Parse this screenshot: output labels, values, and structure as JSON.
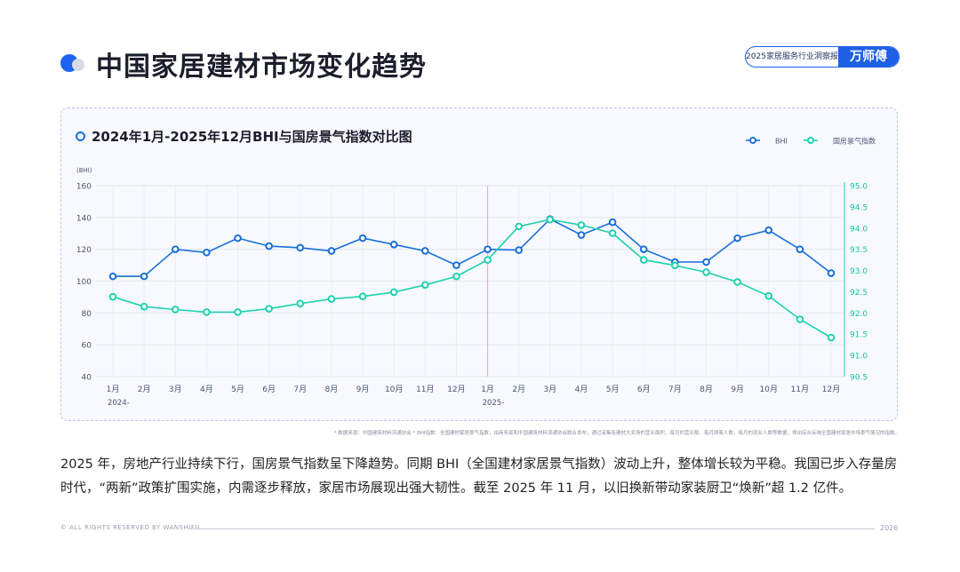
{
  "page": {
    "title": "中国家居建材市场变化趋势",
    "badge_text": "2025家居服务行业洞察报告",
    "brand": "万师傅",
    "paragraph": "2025 年，房地产行业持续下行，国房景气指数呈下降趋势。同期 BHI（全国建材家居景气指数）波动上升，整体增长较为平稳。我国已步入存量房时代，“两新”政策扩围实施，内需逐步释放，家居市场展现出强大韧性。截至 2025 年 11 月，以旧换新带动家装厨卫“焕新”超 1.2 亿件。",
    "source_note": "* 数据来源：中国建筑材料流通协会 * BHI指数：全国建材家居景气指数，由商务部和中国建筑材料流通协会联合发布，通过采集各建材大卖场的营业面积、每月的营业额、每月顾客人数、每月的就业人数等数据，得出综合反映全国建材家居市场景气情况的指数。",
    "footer_left": "© ALL RIGHTS RESERVED BY WANSHIFU",
    "footer_year": "2026"
  },
  "colors": {
    "accent": "#1d63f0",
    "bhi": "#1a6fd6",
    "index": "#1fd1b0"
  },
  "chart_data": {
    "type": "line",
    "title": "2024年1月-2025年12月BHI与国房景气指数对比图",
    "ylabel_left": "(BHI)",
    "categories": [
      "1月",
      "2月",
      "3月",
      "4月",
      "5月",
      "6月",
      "7月",
      "8月",
      "9月",
      "10月",
      "11月",
      "12月",
      "1月",
      "2月",
      "3月",
      "4月",
      "5月",
      "6月",
      "7月",
      "8月",
      "9月",
      "10月",
      "11月",
      "12月"
    ],
    "year_labels": [
      {
        "index": 0,
        "label": "2024-"
      },
      {
        "index": 12,
        "label": "2025-"
      }
    ],
    "ylim_left": [
      40,
      160
    ],
    "yticks_left": [
      40,
      60,
      80,
      100,
      120,
      140,
      160
    ],
    "ylim_right": [
      90.5,
      95.0
    ],
    "yticks_right": [
      "90.5",
      "91.0",
      "91.5",
      "92.0",
      "92.5",
      "93.0",
      "93.5",
      "94.0",
      "94.5",
      "95.0"
    ],
    "series": [
      {
        "name": "BHI",
        "axis": "left",
        "values": [
          103,
          103,
          120,
          118,
          127,
          122,
          121,
          119,
          127,
          123,
          119,
          110,
          120,
          119.5,
          139,
          129,
          137,
          120,
          112,
          112,
          127,
          132,
          120,
          105
        ]
      },
      {
        "name": "国房景气指数",
        "axis": "right",
        "values": [
          92.38,
          92.15,
          92.08,
          92.02,
          92.02,
          92.1,
          92.22,
          92.33,
          92.39,
          92.49,
          92.66,
          92.86,
          93.25,
          94.04,
          94.2,
          94.07,
          93.88,
          93.25,
          93.12,
          92.96,
          92.73,
          92.4,
          91.85,
          91.42
        ]
      }
    ],
    "divider_at_index": 12,
    "grid": true,
    "legend_position": "top-right"
  }
}
